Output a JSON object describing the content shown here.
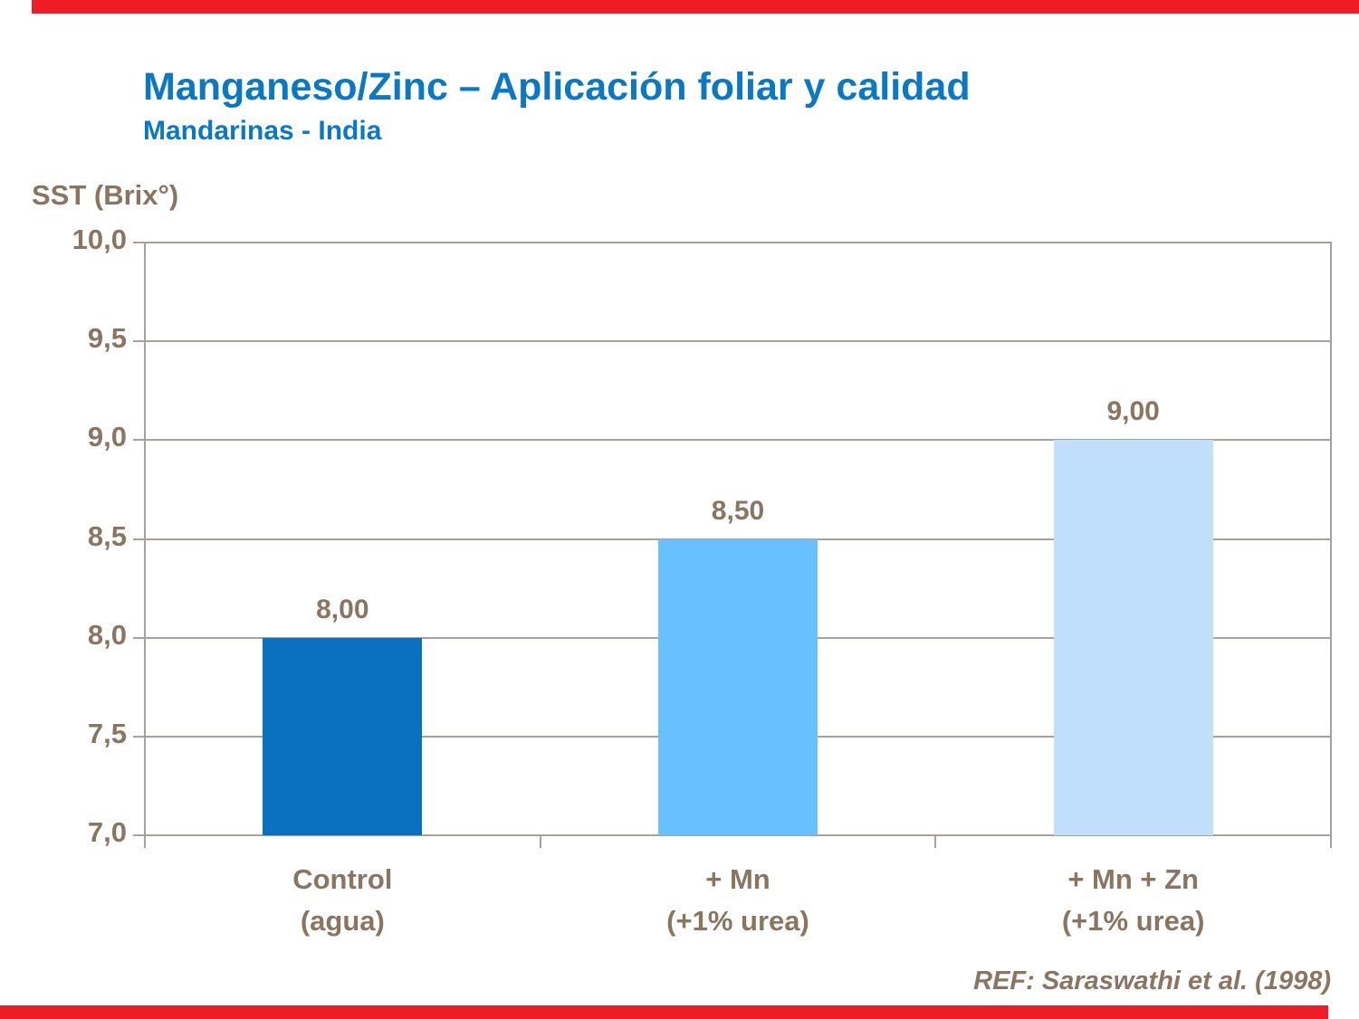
{
  "page": {
    "title": "Manganeso/Zinc – Aplicación foliar y calidad",
    "subtitle": "Mandarinas - India",
    "reference": "REF: Saraswathi et al. (1998)"
  },
  "colors": {
    "title_blue": "#0b78c4",
    "text_brown": "#8a7660",
    "axis_gray": "#a8a09a",
    "accent_red": "#ee1c25",
    "bar_colors": [
      "#0a71c0",
      "#69c0ff",
      "#bfdffa"
    ]
  },
  "chart_data": {
    "type": "bar",
    "title": "Manganeso/Zinc – Aplicación foliar y calidad",
    "subtitle": "Mandarinas - India",
    "ylabel": "SST (Brix°)",
    "xlabel": "",
    "categories": [
      "Control (agua)",
      "+ Mn (+1% urea)",
      "+ Mn + Zn (+1% urea)"
    ],
    "category_lines": [
      [
        "Control",
        "(agua)"
      ],
      [
        "+ Mn",
        "(+1% urea)"
      ],
      [
        "+ Mn + Zn",
        "(+1% urea)"
      ]
    ],
    "values": [
      8.0,
      8.5,
      9.0
    ],
    "value_labels": [
      "8,00",
      "8,50",
      "9,00"
    ],
    "ylim": [
      7.0,
      10.0
    ],
    "ystep": 0.5,
    "ytick_labels": [
      "10,0",
      "9,5",
      "9,0",
      "8,5",
      "8,0",
      "7,5",
      "7,0"
    ],
    "grid": true,
    "legend": "none"
  }
}
